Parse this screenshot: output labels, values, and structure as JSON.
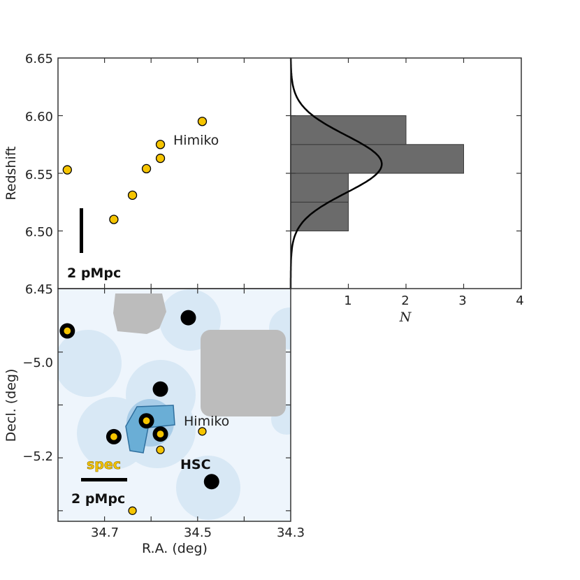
{
  "colors": {
    "spec_point": "#f5c400",
    "hsc_point": "#000000",
    "histogram_bar": "#6b6b6b",
    "density_dark": "#6aaed6",
    "density_mid": "#a9cde8",
    "density_light": "#d8e8f5",
    "mask": "#bcbcbc"
  },
  "chart_data": [
    {
      "type": "scatter",
      "panel": "redshift-vs-ra",
      "ylabel": "Redshift",
      "xlim": [
        34.8,
        34.3
      ],
      "ylim": [
        6.45,
        6.65
      ],
      "ytick_labels": [
        "6.45",
        "6.50",
        "6.55",
        "6.60",
        "6.65"
      ],
      "points": [
        {
          "x": 34.78,
          "y": 6.553
        },
        {
          "x": 34.68,
          "y": 6.51
        },
        {
          "x": 34.64,
          "y": 6.531
        },
        {
          "x": 34.61,
          "y": 6.554
        },
        {
          "x": 34.58,
          "y": 6.563
        },
        {
          "x": 34.58,
          "y": 6.575
        },
        {
          "x": 34.49,
          "y": 6.595
        }
      ],
      "annotations": {
        "himiko": "Himiko",
        "scale_bar": "2 pMpc"
      }
    },
    {
      "type": "bar",
      "orientation": "horizontal",
      "panel": "redshift-histogram",
      "xlabel": "N",
      "xlim": [
        0,
        4
      ],
      "xtick_labels": [
        "1",
        "2",
        "3",
        "4"
      ],
      "bins": [
        {
          "low": 6.5,
          "high": 6.525,
          "count": 1
        },
        {
          "low": 6.525,
          "high": 6.55,
          "count": 1
        },
        {
          "low": 6.55,
          "high": 6.575,
          "count": 3
        },
        {
          "low": 6.575,
          "high": 6.6,
          "count": 2
        }
      ],
      "gaussian": {
        "mean": 6.558,
        "sigma": 0.025,
        "peak": 1.58
      }
    },
    {
      "type": "scatter",
      "panel": "sky-map",
      "xlabel": "R.A. (deg)",
      "ylabel": "Decl. (deg)",
      "xlim": [
        34.8,
        34.3
      ],
      "ylim": [
        -5.32,
        -4.88
      ],
      "xtick_labels": [
        "34.7",
        "34.5",
        "34.3"
      ],
      "ytick_labels": [
        "−5.0",
        "−5.2"
      ],
      "series": [
        {
          "name": "spec",
          "points": [
            {
              "x": 34.78,
              "y": -4.96
            },
            {
              "x": 34.68,
              "y": -5.16
            },
            {
              "x": 34.61,
              "y": -5.13
            },
            {
              "x": 34.58,
              "y": -5.155
            },
            {
              "x": 34.58,
              "y": -5.185
            },
            {
              "x": 34.49,
              "y": -5.15
            },
            {
              "x": 34.64,
              "y": -5.3
            }
          ]
        },
        {
          "name": "HSC",
          "points": [
            {
              "x": 34.78,
              "y": -4.96
            },
            {
              "x": 34.68,
              "y": -5.16
            },
            {
              "x": 34.61,
              "y": -5.13
            },
            {
              "x": 34.58,
              "y": -5.155
            },
            {
              "x": 34.58,
              "y": -5.07
            },
            {
              "x": 34.52,
              "y": -4.935
            },
            {
              "x": 34.47,
              "y": -5.245
            }
          ]
        }
      ],
      "annotations": {
        "himiko": "Himiko",
        "spec_label": "spec",
        "hsc_label": "HSC",
        "scale_bar": "2 pMpc"
      }
    }
  ]
}
